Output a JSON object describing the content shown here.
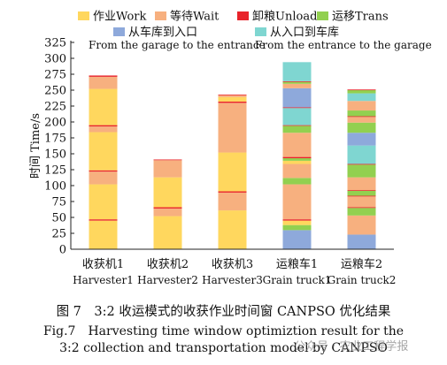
{
  "chart_data": {
    "type": "bar",
    "stacked": true,
    "ylabel": "时间 Time/s",
    "ylim": [
      0,
      325
    ],
    "yticks": [
      0,
      25,
      50,
      75,
      100,
      125,
      150,
      175,
      200,
      225,
      250,
      275,
      300,
      325
    ],
    "categories": [
      {
        "zh": "收获机1",
        "en": "Harvester1"
      },
      {
        "zh": "收获机2",
        "en": "Harvester2"
      },
      {
        "zh": "收获机3",
        "en": "Harvester3"
      },
      {
        "zh": "运粮车1",
        "en": "Grain truck1"
      },
      {
        "zh": "运粮车2",
        "en": "Grain truck2"
      }
    ],
    "legend": [
      {
        "key": "work",
        "label": "作业Work",
        "color": "#FFD75E"
      },
      {
        "key": "wait",
        "label": "等待Wait",
        "color": "#F7B07F"
      },
      {
        "key": "unload",
        "label": "卸粮Unload",
        "color": "#E8232A"
      },
      {
        "key": "trans",
        "label": "运移Trans",
        "color": "#92D050"
      },
      {
        "key": "garage_to_entrance",
        "label": "从车库到入口",
        "color": "#8EA9DB"
      },
      {
        "key": "entrance_to_garage",
        "label": "从入口到车库",
        "color": "#7FD6D1"
      }
    ],
    "legend_captions": [
      "From the garage to the entrance",
      "From the entrance to the garage"
    ],
    "stacks": [
      [
        {
          "key": "work",
          "value": 45
        },
        {
          "key": "unload",
          "value": 2
        },
        {
          "key": "work",
          "value": 55
        },
        {
          "key": "wait",
          "value": 20
        },
        {
          "key": "unload",
          "value": 2
        },
        {
          "key": "work",
          "value": 60
        },
        {
          "key": "wait",
          "value": 9
        },
        {
          "key": "unload",
          "value": 2
        },
        {
          "key": "work",
          "value": 57
        },
        {
          "key": "wait",
          "value": 19
        },
        {
          "key": "unload",
          "value": 2
        }
      ],
      [
        {
          "key": "work",
          "value": 52
        },
        {
          "key": "wait",
          "value": 12
        },
        {
          "key": "unload",
          "value": 2
        },
        {
          "key": "work",
          "value": 47
        },
        {
          "key": "wait",
          "value": 27
        },
        {
          "key": "unload",
          "value": 1
        }
      ],
      [
        {
          "key": "work",
          "value": 61
        },
        {
          "key": "wait",
          "value": 28
        },
        {
          "key": "unload",
          "value": 2
        },
        {
          "key": "work",
          "value": 61
        },
        {
          "key": "wait",
          "value": 78
        },
        {
          "key": "unload",
          "value": 2
        },
        {
          "key": "work",
          "value": 7
        },
        {
          "key": "wait",
          "value": 3
        },
        {
          "key": "unload",
          "value": 1
        }
      ],
      [
        {
          "key": "garage_to_entrance",
          "value": 30
        },
        {
          "key": "trans",
          "value": 8
        },
        {
          "key": "work",
          "value": 7
        },
        {
          "key": "unload",
          "value": 2
        },
        {
          "key": "wait",
          "value": 55
        },
        {
          "key": "trans",
          "value": 10
        },
        {
          "key": "wait",
          "value": 22
        },
        {
          "key": "work",
          "value": 5
        },
        {
          "key": "trans",
          "value": 4
        },
        {
          "key": "unload",
          "value": 2
        },
        {
          "key": "wait",
          "value": 38
        },
        {
          "key": "trans",
          "value": 11
        },
        {
          "key": "unload",
          "value": 1
        },
        {
          "key": "entrance_to_garage",
          "value": 27
        },
        {
          "key": "unload",
          "value": 1
        },
        {
          "key": "garage_to_entrance",
          "value": 30
        },
        {
          "key": "wait",
          "value": 7
        },
        {
          "key": "trans",
          "value": 3
        },
        {
          "key": "unload",
          "value": 1
        },
        {
          "key": "entrance_to_garage",
          "value": 30
        }
      ],
      [
        {
          "key": "garage_to_entrance",
          "value": 23
        },
        {
          "key": "wait",
          "value": 30
        },
        {
          "key": "trans",
          "value": 12
        },
        {
          "key": "unload",
          "value": 1
        },
        {
          "key": "wait",
          "value": 17
        },
        {
          "key": "unload",
          "value": 1
        },
        {
          "key": "trans",
          "value": 8
        },
        {
          "key": "unload",
          "value": 1
        },
        {
          "key": "wait",
          "value": 20
        },
        {
          "key": "trans",
          "value": 20
        },
        {
          "key": "unload",
          "value": 1
        },
        {
          "key": "entrance_to_garage",
          "value": 29
        },
        {
          "key": "garage_to_entrance",
          "value": 20
        },
        {
          "key": "trans",
          "value": 16
        },
        {
          "key": "wait",
          "value": 9
        },
        {
          "key": "unload",
          "value": 1
        },
        {
          "key": "trans",
          "value": 9
        },
        {
          "key": "wait",
          "value": 15
        },
        {
          "key": "entrance_to_garage",
          "value": 12
        },
        {
          "key": "trans",
          "value": 5
        },
        {
          "key": "unload",
          "value": 1
        }
      ]
    ]
  },
  "caption": {
    "line1": "图 7　3:2 收运模式的收获作业时间窗 CANPSO 优化结果",
    "line2": "Fig.7　Harvesting time window optimiztion result for the",
    "line3": "3:2 collection and transportation model by CANPSO"
  },
  "watermark": "公众号 · 农业工程学报"
}
